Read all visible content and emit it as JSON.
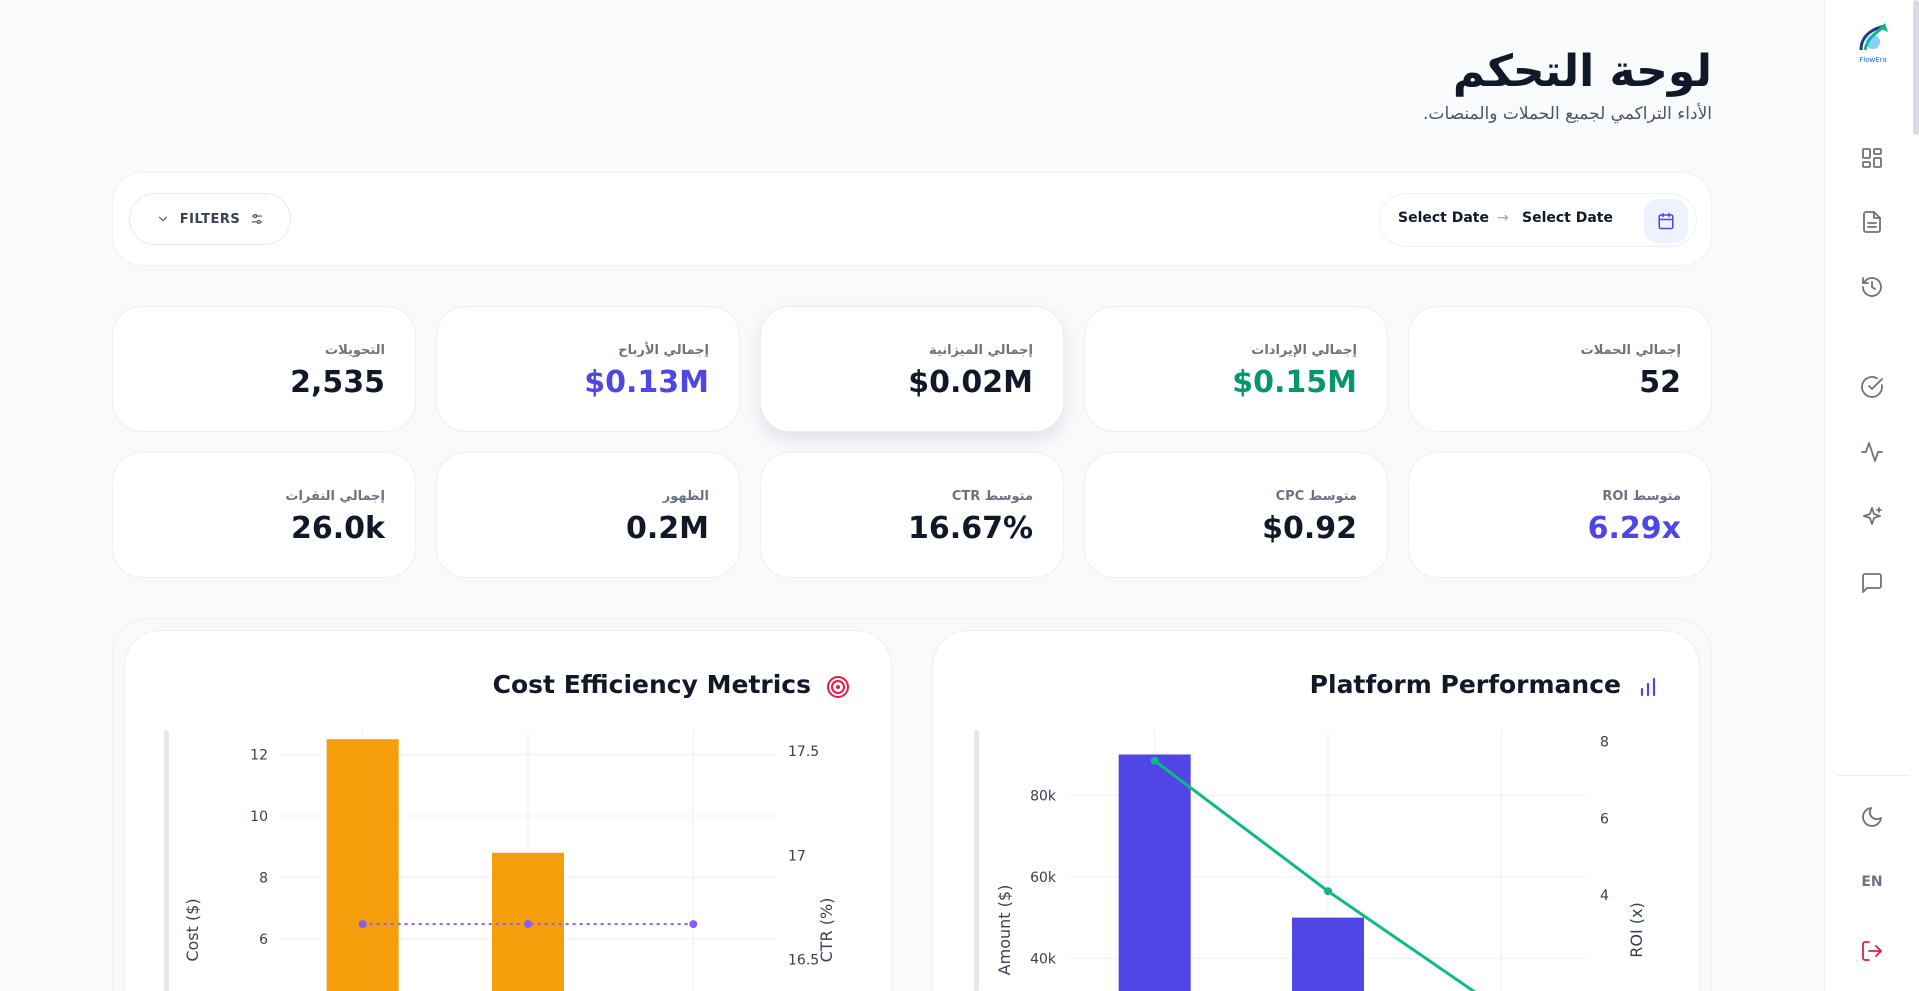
{
  "header": {
    "title": "لوحة التحكم",
    "subtitle": "الأداء التراكمي لجميع الحملات والمنصات."
  },
  "sidebar": {
    "logo_text": "FlowEra",
    "items": [
      {
        "icon": "dashboard-grid-icon"
      },
      {
        "icon": "document-icon"
      },
      {
        "icon": "history-icon"
      },
      {
        "icon": "check-circle-icon"
      },
      {
        "icon": "activity-icon"
      },
      {
        "icon": "sparkles-icon"
      },
      {
        "icon": "message-icon"
      }
    ],
    "theme_icon": "moon-icon",
    "language": "EN",
    "logout_icon": "logout-icon"
  },
  "filterbar": {
    "filters_label": "FILTERS",
    "start_date": "Select Date",
    "end_date": "Select Date",
    "arrow": "→"
  },
  "kpis": [
    {
      "label": "إجمالي الحملات",
      "value": "52",
      "color": "#111827"
    },
    {
      "label": "إجمالي الإيرادات",
      "value": "$0.15M",
      "color": "#059669"
    },
    {
      "label": "إجمالي الميزانية",
      "value": "$0.02M",
      "color": "#111827"
    },
    {
      "label": "إجمالي الأرباح",
      "value": "$0.13M",
      "color": "#4f46e5"
    },
    {
      "label": "التحويلات",
      "value": "2,535",
      "color": "#111827"
    },
    {
      "label": "متوسط ROI",
      "value": "6.29x",
      "color": "#4f46e5"
    },
    {
      "label": "متوسط CPC",
      "value": "$0.92",
      "color": "#111827"
    },
    {
      "label": "متوسط CTR",
      "value": "16.67%",
      "color": "#111827"
    },
    {
      "label": "الظهور",
      "value": "0.2M",
      "color": "#111827"
    },
    {
      "label": "إجمالي النقرات",
      "value": "26.0k",
      "color": "#111827"
    }
  ],
  "charts": {
    "cost_efficiency": {
      "title": "Cost Efficiency Metrics",
      "icon": "target-icon"
    },
    "platform_performance": {
      "title": "Platform Performance",
      "icon": "bar-chart-icon"
    }
  },
  "chart_data": [
    {
      "type": "bar",
      "title": "Cost Efficiency Metrics",
      "ylabel": "Cost ($)",
      "y2label": "CTR (%)",
      "ylim_visible": [
        4.3,
        12.8
      ],
      "y2lim_visible": [
        16.35,
        17.6
      ],
      "yticks": [
        "6",
        "8",
        "10",
        "12"
      ],
      "y2ticks": [
        "16.5",
        "17",
        "17.5"
      ],
      "series": [
        {
          "kind": "bar",
          "axis": "y",
          "color": "#f59e0b",
          "values": [
            12.5,
            8.8
          ]
        },
        {
          "kind": "line",
          "axis": "y2",
          "color": "#8b5cf6",
          "dash": "dotted",
          "values": [
            16.67,
            16.67,
            16.67
          ]
        }
      ],
      "grid": true
    },
    {
      "type": "bar",
      "title": "Platform Performance",
      "ylabel": "Amount ($)",
      "y2label": "ROI (x)",
      "ylim_visible": [
        32000,
        96000
      ],
      "y2lim_visible": [
        1.5,
        8.3
      ],
      "yticks": [
        "40k",
        "60k",
        "80k"
      ],
      "y2ticks": [
        "4",
        "6",
        "8"
      ],
      "series": [
        {
          "kind": "bar",
          "axis": "y",
          "color": "#4f46e5",
          "values": [
            90000,
            50000
          ]
        },
        {
          "kind": "line",
          "axis": "y2",
          "color": "#10b981",
          "values": [
            7.5,
            4.1,
            1.0
          ]
        }
      ],
      "grid": true
    }
  ]
}
